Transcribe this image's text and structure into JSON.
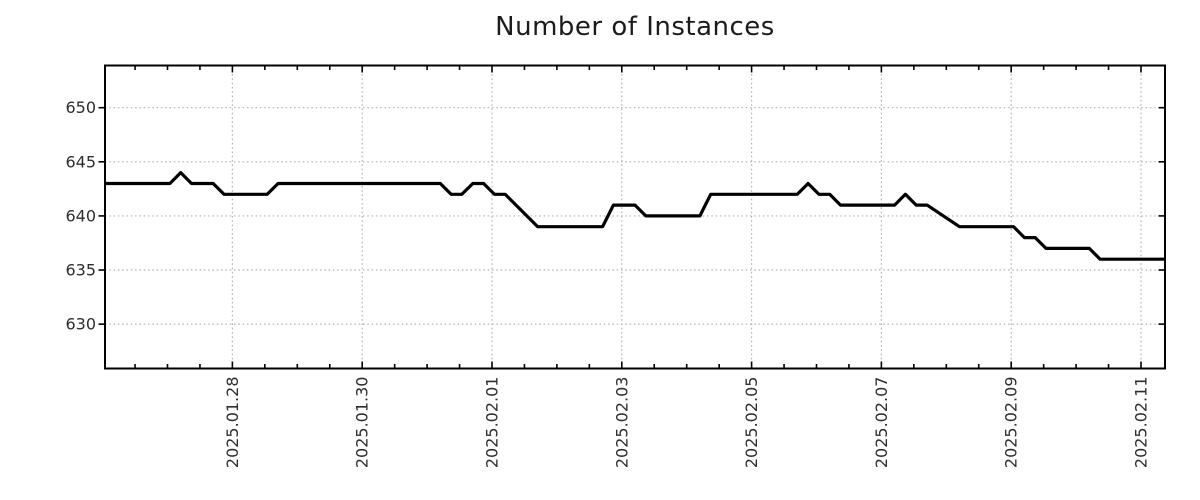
{
  "page": {
    "background": "#ffffff"
  },
  "chart_data": {
    "type": "line",
    "title": "Number of Instances",
    "legend": "none",
    "grid": {
      "show": true,
      "style": "dotted",
      "color": "#b0b0b0"
    },
    "axis_color": "#000000",
    "tick_label_color": "#2e2e2e",
    "x_axis": {
      "unit": "days_from_plot_start",
      "range": [
        0,
        16.333
      ],
      "minor_tick_start": 0.463,
      "minor_tick_step": 0.5,
      "label_rotation_degrees": -90,
      "major_ticks": [
        {
          "t": 1.963,
          "label": "2025.01.28"
        },
        {
          "t": 3.963,
          "label": "2025.01.30"
        },
        {
          "t": 5.963,
          "label": "2025.02.01"
        },
        {
          "t": 7.963,
          "label": "2025.02.03"
        },
        {
          "t": 9.963,
          "label": "2025.02.05"
        },
        {
          "t": 11.963,
          "label": "2025.02.07"
        },
        {
          "t": 13.963,
          "label": "2025.02.09"
        },
        {
          "t": 15.963,
          "label": "2025.02.11"
        }
      ]
    },
    "y_axis": {
      "range": [
        625.9,
        653.9
      ],
      "ticks": [
        630,
        635,
        640,
        645,
        650
      ]
    },
    "series": [
      {
        "name": "instances",
        "color": "#000000",
        "line_width": 3.2,
        "points": [
          [
            0,
            643
          ],
          [
            1.0,
            643
          ],
          [
            1.167,
            644
          ],
          [
            1.333,
            643
          ],
          [
            1.667,
            643
          ],
          [
            1.833,
            642
          ],
          [
            2.5,
            642
          ],
          [
            2.667,
            643
          ],
          [
            5.167,
            643
          ],
          [
            5.333,
            642
          ],
          [
            5.5,
            642
          ],
          [
            5.667,
            643
          ],
          [
            5.833,
            643
          ],
          [
            6.0,
            642
          ],
          [
            6.167,
            642
          ],
          [
            6.667,
            639
          ],
          [
            7.667,
            639
          ],
          [
            7.833,
            641
          ],
          [
            8.167,
            641
          ],
          [
            8.333,
            640
          ],
          [
            9.167,
            640
          ],
          [
            9.333,
            642
          ],
          [
            10.667,
            642
          ],
          [
            10.833,
            643
          ],
          [
            11.0,
            642
          ],
          [
            11.167,
            642
          ],
          [
            11.333,
            641
          ],
          [
            12.167,
            641
          ],
          [
            12.333,
            642
          ],
          [
            12.5,
            641
          ],
          [
            12.667,
            641
          ],
          [
            13.167,
            639
          ],
          [
            14.0,
            639
          ],
          [
            14.167,
            638
          ],
          [
            14.333,
            638
          ],
          [
            14.5,
            637
          ],
          [
            15.167,
            637
          ],
          [
            15.333,
            636
          ],
          [
            16.333,
            636
          ]
        ]
      }
    ]
  }
}
